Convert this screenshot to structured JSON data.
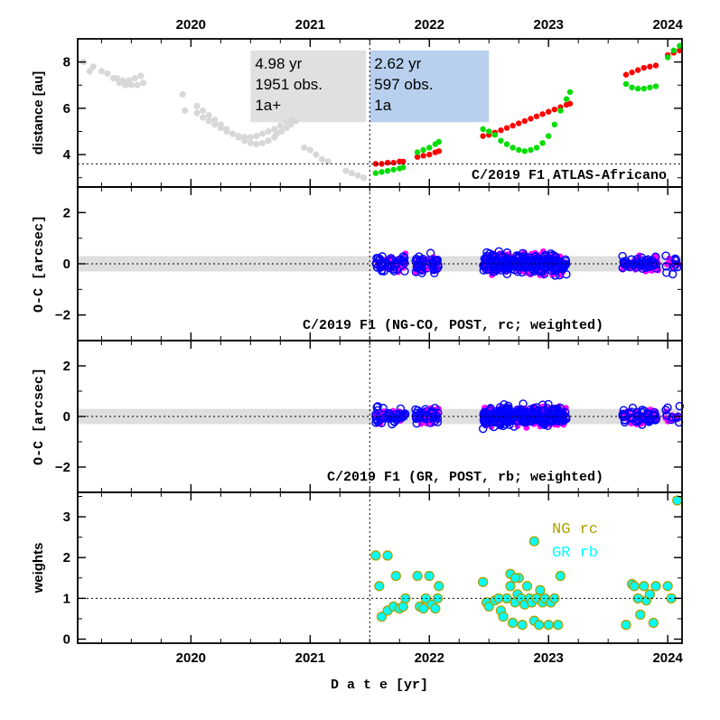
{
  "chart_data": {
    "type": "scatter",
    "x_axis": {
      "label": "D a t e [yr]",
      "range": [
        2019.05,
        2024.12
      ],
      "ticks": [
        2020,
        2021,
        2022,
        2023,
        2024
      ],
      "tick_labels": [
        "2020",
        "2021",
        "2022",
        "2023",
        "2024"
      ]
    },
    "perihelion_marker_x": 2021.5,
    "colors": {
      "grey_points": "#d8d8d8",
      "red": "#ff0000",
      "green": "#00dd00",
      "box_pre": "#e0e0e0",
      "box_post": "#b8d0ee",
      "magenta": "#ff00ff",
      "blue": "#0000ff",
      "cyan": "#00ffff",
      "olive": "#aaa000",
      "band": "#dedede"
    },
    "panels": [
      {
        "id": "distance",
        "ylabel": "distance [au]",
        "ylim": [
          2.6,
          9.0
        ],
        "ticks": [
          4,
          6,
          8
        ],
        "tick_labels": [
          "4",
          "6",
          "8"
        ],
        "reference_line": 3.6,
        "title": "C/2019 F1 ATLAS-Africano",
        "info_boxes": [
          {
            "lines": [
              "4.98 yr",
              "1951 obs.",
              "1a+"
            ],
            "x0": 2020.5,
            "x1": 2021.5,
            "y_top": 8.5,
            "y_bottom": 5.4,
            "color": "#e0e0e0"
          },
          {
            "lines": [
              "2.62 yr",
              "597 obs.",
              "1a"
            ],
            "x0": 2021.5,
            "x1": 2022.5,
            "y_top": 8.5,
            "y_bottom": 5.4,
            "color": "#b8d0ee"
          }
        ],
        "series": [
          {
            "name": "pre-perihelion distances",
            "color": "#d8d8d8",
            "points": [
              [
                2019.1,
                8.0
              ],
              [
                2019.15,
                7.6
              ],
              [
                2019.18,
                7.8
              ],
              [
                2019.25,
                7.6
              ],
              [
                2019.3,
                7.5
              ],
              [
                2019.35,
                7.3
              ],
              [
                2019.4,
                7.1
              ],
              [
                2019.45,
                7.0
              ],
              [
                2019.5,
                7.0
              ],
              [
                2019.55,
                7.0
              ],
              [
                2019.6,
                7.1
              ],
              [
                2019.38,
                7.3
              ],
              [
                2019.43,
                7.2
              ],
              [
                2019.48,
                7.2
              ],
              [
                2019.53,
                7.3
              ],
              [
                2019.58,
                7.4
              ],
              [
                2019.95,
                5.9
              ],
              [
                2019.93,
                6.6
              ],
              [
                2020.05,
                6.1
              ],
              [
                2020.1,
                5.9
              ],
              [
                2020.15,
                5.7
              ],
              [
                2020.2,
                5.5
              ],
              [
                2020.25,
                5.3
              ],
              [
                2020.3,
                5.1
              ],
              [
                2020.35,
                4.9
              ],
              [
                2020.4,
                4.75
              ],
              [
                2020.45,
                4.6
              ],
              [
                2020.5,
                4.5
              ],
              [
                2020.55,
                4.45
              ],
              [
                2020.6,
                4.5
              ],
              [
                2020.65,
                4.6
              ],
              [
                2020.7,
                4.75
              ],
              [
                2020.05,
                5.8
              ],
              [
                2020.1,
                5.6
              ],
              [
                2020.15,
                5.45
              ],
              [
                2020.2,
                5.3
              ],
              [
                2020.25,
                5.15
              ],
              [
                2020.3,
                5.0
              ],
              [
                2020.35,
                4.9
              ],
              [
                2020.4,
                4.8
              ],
              [
                2020.45,
                4.75
              ],
              [
                2020.5,
                4.75
              ],
              [
                2020.55,
                4.8
              ],
              [
                2020.6,
                4.9
              ],
              [
                2020.65,
                5.0
              ],
              [
                2020.7,
                5.1
              ],
              [
                2020.75,
                5.25
              ],
              [
                2020.8,
                5.4
              ],
              [
                2020.85,
                5.5
              ],
              [
                2020.72,
                4.9
              ],
              [
                2020.76,
                5.0
              ],
              [
                2020.8,
                5.15
              ],
              [
                2020.84,
                5.3
              ],
              [
                2020.88,
                5.45
              ],
              [
                2020.95,
                4.3
              ],
              [
                2021.0,
                4.2
              ],
              [
                2021.05,
                4.0
              ],
              [
                2021.1,
                3.8
              ],
              [
                2021.15,
                3.7
              ],
              [
                2021.3,
                3.3
              ],
              [
                2021.35,
                3.2
              ],
              [
                2021.4,
                3.1
              ],
              [
                2021.45,
                3.0
              ]
            ]
          },
          {
            "name": "observed distance",
            "color": "#ff0000",
            "points": [
              [
                2021.55,
                3.6
              ],
              [
                2021.6,
                3.6
              ],
              [
                2021.65,
                3.65
              ],
              [
                2021.7,
                3.65
              ],
              [
                2021.75,
                3.7
              ],
              [
                2021.78,
                3.7
              ],
              [
                2021.9,
                3.9
              ],
              [
                2021.95,
                3.95
              ],
              [
                2022.0,
                4.0
              ],
              [
                2022.05,
                4.1
              ],
              [
                2022.08,
                4.15
              ],
              [
                2022.45,
                4.8
              ],
              [
                2022.5,
                4.85
              ],
              [
                2022.55,
                4.95
              ],
              [
                2022.6,
                5.05
              ],
              [
                2022.65,
                5.15
              ],
              [
                2022.7,
                5.25
              ],
              [
                2022.75,
                5.35
              ],
              [
                2022.8,
                5.45
              ],
              [
                2022.85,
                5.55
              ],
              [
                2022.9,
                5.65
              ],
              [
                2022.95,
                5.75
              ],
              [
                2023.0,
                5.85
              ],
              [
                2023.05,
                5.95
              ],
              [
                2023.1,
                6.05
              ],
              [
                2023.15,
                6.15
              ],
              [
                2023.18,
                6.2
              ],
              [
                2023.65,
                7.45
              ],
              [
                2023.7,
                7.55
              ],
              [
                2023.75,
                7.65
              ],
              [
                2023.8,
                7.75
              ],
              [
                2023.85,
                7.8
              ],
              [
                2023.9,
                7.85
              ],
              [
                2024.0,
                8.3
              ],
              [
                2024.05,
                8.4
              ],
              [
                2024.1,
                8.5
              ]
            ]
          },
          {
            "name": "distance to Earth",
            "color": "#00dd00",
            "points": [
              [
                2021.55,
                3.2
              ],
              [
                2021.6,
                3.25
              ],
              [
                2021.65,
                3.3
              ],
              [
                2021.7,
                3.35
              ],
              [
                2021.75,
                3.4
              ],
              [
                2021.78,
                3.45
              ],
              [
                2021.9,
                4.1
              ],
              [
                2021.95,
                4.2
              ],
              [
                2022.0,
                4.3
              ],
              [
                2022.05,
                4.45
              ],
              [
                2022.08,
                4.55
              ],
              [
                2022.45,
                5.1
              ],
              [
                2022.5,
                5.0
              ],
              [
                2022.55,
                4.85
              ],
              [
                2022.6,
                4.6
              ],
              [
                2022.65,
                4.45
              ],
              [
                2022.7,
                4.3
              ],
              [
                2022.75,
                4.2
              ],
              [
                2022.8,
                4.15
              ],
              [
                2022.85,
                4.2
              ],
              [
                2022.9,
                4.3
              ],
              [
                2022.95,
                4.5
              ],
              [
                2023.0,
                4.8
              ],
              [
                2023.05,
                5.3
              ],
              [
                2023.1,
                5.9
              ],
              [
                2023.15,
                6.4
              ],
              [
                2023.18,
                6.7
              ],
              [
                2023.65,
                7.05
              ],
              [
                2023.7,
                6.9
              ],
              [
                2023.75,
                6.85
              ],
              [
                2023.8,
                6.85
              ],
              [
                2023.85,
                6.9
              ],
              [
                2023.9,
                6.95
              ],
              [
                2024.0,
                8.2
              ],
              [
                2024.05,
                8.5
              ],
              [
                2024.1,
                8.7
              ]
            ]
          }
        ]
      },
      {
        "id": "oc_ng",
        "ylabel": "O-C [arcsec]",
        "ylim": [
          -3.0,
          3.0
        ],
        "ticks": [
          -2,
          0,
          2
        ],
        "tick_labels": [
          "−2",
          "0",
          "2"
        ],
        "band": [
          -0.3,
          0.3
        ],
        "reference_line": 0,
        "title": "C/2019 F1 (NG-CO, POST, rc; weighted)"
      },
      {
        "id": "oc_gr",
        "ylabel": "O-C [arcsec]",
        "ylim": [
          -3.0,
          3.0
        ],
        "ticks": [
          -2,
          0,
          2
        ],
        "tick_labels": [
          "−2",
          "0",
          "2"
        ],
        "band": [
          -0.3,
          0.3
        ],
        "reference_line": 0,
        "title": "C/2019 F1 (GR, POST, rb; weighted)"
      },
      {
        "id": "weights",
        "ylabel": "weights",
        "ylim": [
          -0.1,
          3.6
        ],
        "ticks": [
          0,
          1,
          2,
          3
        ],
        "tick_labels": [
          "0",
          "1",
          "2",
          "3"
        ],
        "reference_line": 1,
        "legend": [
          {
            "label": "NG rc",
            "color": "#aaa000"
          },
          {
            "label": "GR rb",
            "color": "#00ffff"
          }
        ],
        "series": [
          {
            "name": "weights (GR rb / NG rc)",
            "points": [
              [
                2021.55,
                2.05
              ],
              [
                2021.65,
                2.05
              ],
              [
                2021.58,
                1.3
              ],
              [
                2021.6,
                0.55
              ],
              [
                2021.65,
                0.7
              ],
              [
                2021.7,
                0.8
              ],
              [
                2021.75,
                0.75
              ],
              [
                2021.72,
                1.55
              ],
              [
                2021.78,
                0.8
              ],
              [
                2021.8,
                1.0
              ],
              [
                2021.9,
                1.55
              ],
              [
                2021.92,
                0.8
              ],
              [
                2021.95,
                0.75
              ],
              [
                2021.97,
                1.0
              ],
              [
                2022.0,
                1.55
              ],
              [
                2022.02,
                0.85
              ],
              [
                2022.05,
                0.75
              ],
              [
                2022.07,
                1.0
              ],
              [
                2022.08,
                1.3
              ],
              [
                2022.45,
                1.4
              ],
              [
                2022.48,
                0.9
              ],
              [
                2022.5,
                0.8
              ],
              [
                2022.55,
                0.95
              ],
              [
                2022.58,
                1.0
              ],
              [
                2022.6,
                0.7
              ],
              [
                2022.62,
                0.55
              ],
              [
                2022.65,
                1.0
              ],
              [
                2022.68,
                1.3
              ],
              [
                2022.7,
                0.4
              ],
              [
                2022.72,
                0.9
              ],
              [
                2022.74,
                1.1
              ],
              [
                2022.75,
                1.5
              ],
              [
                2022.77,
                1.0
              ],
              [
                2022.78,
                0.35
              ],
              [
                2022.8,
                0.85
              ],
              [
                2022.82,
                1.3
              ],
              [
                2022.84,
                1.0
              ],
              [
                2022.86,
                0.9
              ],
              [
                2022.88,
                0.45
              ],
              [
                2022.9,
                1.0
              ],
              [
                2022.92,
                0.35
              ],
              [
                2022.93,
                1.2
              ],
              [
                2022.95,
                0.9
              ],
              [
                2022.97,
                1.0
              ],
              [
                2023.0,
                0.35
              ],
              [
                2023.02,
                0.9
              ],
              [
                2023.05,
                1.0
              ],
              [
                2023.08,
                0.35
              ],
              [
                2023.1,
                1.55
              ],
              [
                2022.88,
                2.4
              ],
              [
                2022.68,
                1.6
              ],
              [
                2022.72,
                1.5
              ],
              [
                2023.65,
                0.35
              ],
              [
                2023.7,
                1.35
              ],
              [
                2023.72,
                1.3
              ],
              [
                2023.75,
                1.0
              ],
              [
                2023.77,
                0.6
              ],
              [
                2023.8,
                1.3
              ],
              [
                2023.82,
                0.95
              ],
              [
                2023.85,
                1.1
              ],
              [
                2023.88,
                0.4
              ],
              [
                2023.9,
                1.3
              ],
              [
                2024.0,
                1.3
              ],
              [
                2024.03,
                1.0
              ],
              [
                2024.08,
                3.4
              ]
            ]
          }
        ]
      }
    ],
    "oc_clusters": [
      {
        "x0": 2021.55,
        "x1": 2021.8,
        "n": 42,
        "spread": 0.35
      },
      {
        "x0": 2021.88,
        "x1": 2021.98,
        "n": 22,
        "spread": 0.35
      },
      {
        "x0": 2022.0,
        "x1": 2022.08,
        "n": 20,
        "spread": 0.4
      },
      {
        "x0": 2022.45,
        "x1": 2023.15,
        "n": 260,
        "spread": 0.42
      },
      {
        "x0": 2023.62,
        "x1": 2023.92,
        "n": 48,
        "spread": 0.3
      },
      {
        "x0": 2023.98,
        "x1": 2024.1,
        "n": 10,
        "spread": 0.4
      }
    ]
  }
}
